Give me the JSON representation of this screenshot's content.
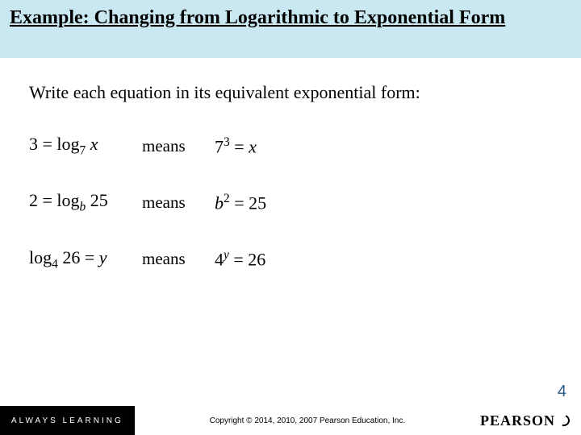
{
  "title": "Example:  Changing from Logarithmic to Exponential Form",
  "instruction": "Write each equation in its equivalent exponential form:",
  "rows": [
    {
      "lhs_html": "3 = log<sub>7</sub> <span class='math'>x</span>",
      "means": "means",
      "rhs_html": "7<sup>3</sup> = <span class='math'>x</span>"
    },
    {
      "lhs_html": "2 = log<sub><span class='math'>b</span></sub> 25",
      "means": "means",
      "rhs_html": "<span class='math'>b</span><sup>2</sup> = 25"
    },
    {
      "lhs_html": "log<sub>4</sub> 26 = <span class='math'>y</span>",
      "means": "means",
      "rhs_html": "4<sup><span class='math'>y</span></sup> = 26"
    }
  ],
  "footer": {
    "always_learning": "ALWAYS LEARNING",
    "copyright": "Copyright © 2014, 2010, 2007 Pearson Education, Inc.",
    "brand": "PEARSON"
  },
  "page_number": "4",
  "colors": {
    "title_bg": "#c9e8f2",
    "page_num": "#2a5a8a",
    "footer_bg": "#000000",
    "footer_fg": "#ffffff"
  }
}
